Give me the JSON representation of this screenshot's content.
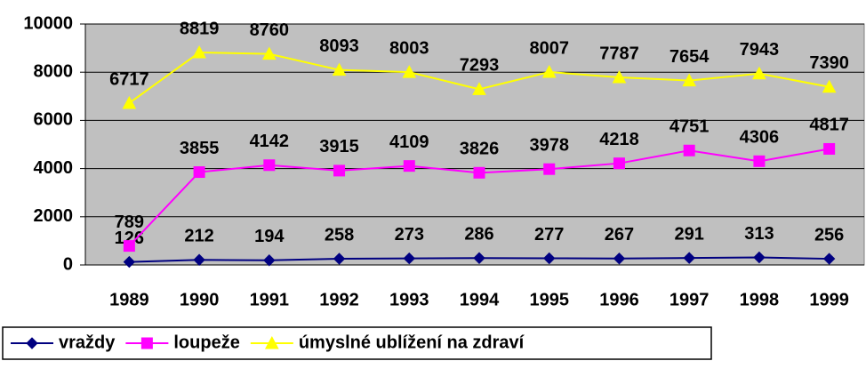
{
  "chart_data": {
    "type": "line",
    "categories": [
      "1989",
      "1990",
      "1991",
      "1992",
      "1993",
      "1994",
      "1995",
      "1996",
      "1997",
      "1998",
      "1999"
    ],
    "series": [
      {
        "name": "vraždy",
        "color": "#000080",
        "marker": "diamond",
        "values": [
          126,
          212,
          194,
          258,
          273,
          286,
          277,
          267,
          291,
          313,
          256
        ]
      },
      {
        "name": "loupeže",
        "color": "#ff00ff",
        "marker": "square",
        "values": [
          789,
          3855,
          4142,
          3915,
          4109,
          3826,
          3978,
          4218,
          4751,
          4306,
          4817
        ]
      },
      {
        "name": "úmyslné ublížení na zdraví",
        "color": "#ffff00",
        "marker": "triangle",
        "values": [
          6717,
          8819,
          8760,
          8093,
          8003,
          7293,
          8007,
          7787,
          7654,
          7943,
          7390
        ]
      }
    ],
    "ylim": [
      0,
      10000
    ],
    "yticks": [
      0,
      2000,
      4000,
      6000,
      8000,
      10000
    ],
    "grid": true,
    "legend": "bottom"
  }
}
